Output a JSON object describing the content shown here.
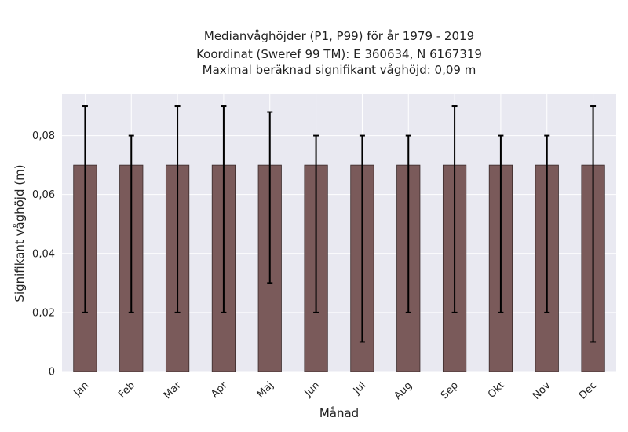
{
  "chart_data": {
    "type": "bar",
    "title_lines": [
      "Medianvåghöjder (P1, P99) för år 1979 - 2019",
      "Koordinat (Sweref 99 TM): E 360634, N 6167319",
      "Maximal beräknad signifikant våghöjd: 0,09 m"
    ],
    "xlabel": "Månad",
    "ylabel": "Signifikant våghöjd (m)",
    "categories": [
      "Jan",
      "Feb",
      "Mar",
      "Apr",
      "Maj",
      "Jun",
      "Jul",
      "Aug",
      "Sep",
      "Okt",
      "Nov",
      "Dec"
    ],
    "values": [
      0.07,
      0.07,
      0.07,
      0.07,
      0.07,
      0.07,
      0.07,
      0.07,
      0.07,
      0.07,
      0.07,
      0.07
    ],
    "p1": [
      0.02,
      0.02,
      0.02,
      0.02,
      0.03,
      0.02,
      0.01,
      0.02,
      0.02,
      0.02,
      0.02,
      0.01
    ],
    "p99": [
      0.09,
      0.08,
      0.09,
      0.09,
      0.088,
      0.08,
      0.08,
      0.08,
      0.09,
      0.08,
      0.08,
      0.09
    ],
    "yticks": [
      0,
      0.02,
      0.04,
      0.06,
      0.08
    ],
    "ytick_labels": [
      "0",
      "0,02",
      "0,04",
      "0,06",
      "0,08"
    ],
    "ylim": [
      0,
      0.094
    ],
    "grid": true,
    "colors": {
      "bar": "#7a5a5a",
      "bar_edge": "#3a2a2a",
      "error": "#000000",
      "plot_bg": "#e9e9f1",
      "grid": "#ffffff"
    }
  }
}
